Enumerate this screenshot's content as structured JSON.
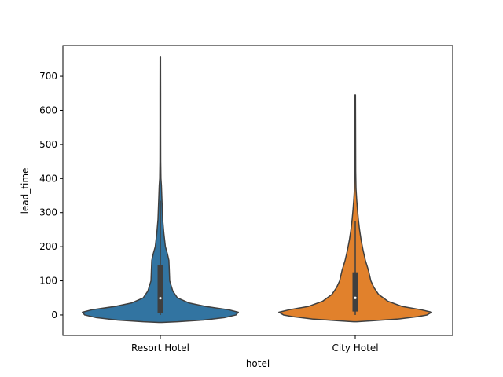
{
  "chart_data": {
    "type": "violin",
    "xlabel": "hotel",
    "ylabel": "lead_time",
    "categories": [
      "Resort Hotel",
      "City Hotel"
    ],
    "ylim": [
      -60,
      790
    ],
    "yticks": [
      0,
      100,
      200,
      300,
      400,
      500,
      600,
      700
    ],
    "grid": false,
    "series": [
      {
        "category": "Resort Hotel",
        "color": "#3274a1",
        "range": [
          -22,
          758
        ],
        "quartiles": {
          "q1": 5,
          "median": 49,
          "q3": 147
        },
        "whiskers": [
          0,
          335
        ],
        "density": [
          {
            "y": -22,
            "w": 0.02
          },
          {
            "y": -20,
            "w": 0.22
          },
          {
            "y": -15,
            "w": 0.55
          },
          {
            "y": -8,
            "w": 0.82
          },
          {
            "y": 0,
            "w": 0.97
          },
          {
            "y": 8,
            "w": 1.0
          },
          {
            "y": 15,
            "w": 0.88
          },
          {
            "y": 25,
            "w": 0.58
          },
          {
            "y": 35,
            "w": 0.37
          },
          {
            "y": 50,
            "w": 0.22
          },
          {
            "y": 70,
            "w": 0.16
          },
          {
            "y": 100,
            "w": 0.12
          },
          {
            "y": 130,
            "w": 0.115
          },
          {
            "y": 160,
            "w": 0.11
          },
          {
            "y": 180,
            "w": 0.09
          },
          {
            "y": 200,
            "w": 0.065
          },
          {
            "y": 240,
            "w": 0.045
          },
          {
            "y": 280,
            "w": 0.03
          },
          {
            "y": 330,
            "w": 0.022
          },
          {
            "y": 380,
            "w": 0.014
          },
          {
            "y": 400,
            "w": 0.008
          },
          {
            "y": 450,
            "w": 0.005
          },
          {
            "y": 550,
            "w": 0.004
          },
          {
            "y": 650,
            "w": 0.004
          },
          {
            "y": 758,
            "w": 0.003
          }
        ]
      },
      {
        "category": "City Hotel",
        "color": "#e1812c",
        "range": [
          -20,
          645
        ],
        "quartiles": {
          "q1": 10,
          "median": 50,
          "q3": 125
        },
        "whiskers": [
          0,
          275
        ],
        "density": [
          {
            "y": -20,
            "w": 0.02
          },
          {
            "y": -17,
            "w": 0.22
          },
          {
            "y": -12,
            "w": 0.55
          },
          {
            "y": -5,
            "w": 0.8
          },
          {
            "y": 0,
            "w": 0.92
          },
          {
            "y": 8,
            "w": 0.98
          },
          {
            "y": 15,
            "w": 0.85
          },
          {
            "y": 25,
            "w": 0.6
          },
          {
            "y": 40,
            "w": 0.42
          },
          {
            "y": 60,
            "w": 0.3
          },
          {
            "y": 80,
            "w": 0.24
          },
          {
            "y": 100,
            "w": 0.2
          },
          {
            "y": 130,
            "w": 0.17
          },
          {
            "y": 160,
            "w": 0.13
          },
          {
            "y": 190,
            "w": 0.1
          },
          {
            "y": 220,
            "w": 0.075
          },
          {
            "y": 250,
            "w": 0.055
          },
          {
            "y": 280,
            "w": 0.04
          },
          {
            "y": 310,
            "w": 0.028
          },
          {
            "y": 340,
            "w": 0.018
          },
          {
            "y": 370,
            "w": 0.01
          },
          {
            "y": 420,
            "w": 0.006
          },
          {
            "y": 500,
            "w": 0.005
          },
          {
            "y": 580,
            "w": 0.004
          },
          {
            "y": 645,
            "w": 0.003
          }
        ]
      }
    ]
  }
}
